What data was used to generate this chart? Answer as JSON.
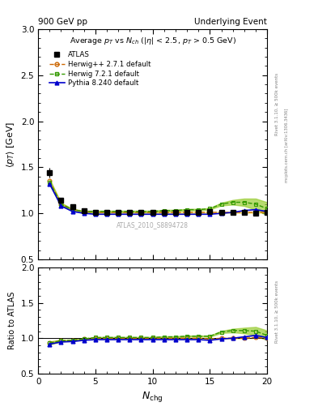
{
  "title_top_left": "900 GeV pp",
  "title_top_right": "Underlying Event",
  "main_title": "Average $p_T$ vs $N_{ch}$ ($|\\eta|$ < 2.5, $p_T$ > 0.5 GeV)",
  "ylabel_main": "$\\langle p_T \\rangle$ [GeV]",
  "ylabel_ratio": "Ratio to ATLAS",
  "xlabel": "$N_{\\rm chg}$",
  "watermark": "ATLAS_2010_S8894728",
  "right_label_top": "Rivet 3.1.10, ≥ 500k events",
  "right_label_bot": "mcplots.cern.ch [arXiv:1306.3436]",
  "xlim": [
    0,
    20
  ],
  "ylim_main": [
    0.5,
    3.0
  ],
  "ylim_ratio": [
    0.5,
    2.0
  ],
  "xticks": [
    0,
    5,
    10,
    15,
    20
  ],
  "yticks_main": [
    0.5,
    1.0,
    1.5,
    2.0,
    2.5,
    3.0
  ],
  "yticks_ratio": [
    0.5,
    1.0,
    1.5,
    2.0
  ],
  "atlas_x": [
    1,
    2,
    3,
    4,
    5,
    6,
    7,
    8,
    9,
    10,
    11,
    12,
    13,
    14,
    15,
    16,
    17,
    18,
    19,
    20
  ],
  "atlas_y": [
    1.44,
    1.14,
    1.07,
    1.03,
    1.01,
    1.01,
    1.01,
    1.01,
    1.01,
    1.01,
    1.01,
    1.01,
    1.01,
    1.01,
    1.02,
    1.01,
    1.01,
    1.01,
    1.0,
    1.01
  ],
  "atlas_yerr": [
    0.05,
    0.03,
    0.02,
    0.02,
    0.01,
    0.01,
    0.01,
    0.01,
    0.01,
    0.01,
    0.01,
    0.01,
    0.01,
    0.01,
    0.01,
    0.01,
    0.01,
    0.01,
    0.01,
    0.02
  ],
  "herwig_x": [
    1,
    2,
    3,
    4,
    5,
    6,
    7,
    8,
    9,
    10,
    11,
    12,
    13,
    14,
    15,
    16,
    17,
    18,
    19,
    20
  ],
  "herwig_y": [
    1.35,
    1.1,
    1.04,
    1.02,
    1.01,
    1.01,
    1.01,
    1.01,
    1.01,
    1.01,
    1.01,
    1.01,
    1.01,
    1.01,
    1.01,
    1.01,
    1.01,
    1.01,
    1.01,
    1.01
  ],
  "herwig_band_lo": [
    0.02,
    0.01,
    0.005,
    0.005,
    0.005,
    0.005,
    0.005,
    0.005,
    0.005,
    0.005,
    0.005,
    0.005,
    0.005,
    0.005,
    0.005,
    0.005,
    0.005,
    0.005,
    0.005,
    0.005
  ],
  "herwig_band_hi": [
    0.02,
    0.01,
    0.005,
    0.005,
    0.005,
    0.005,
    0.005,
    0.005,
    0.005,
    0.005,
    0.005,
    0.005,
    0.005,
    0.005,
    0.005,
    0.005,
    0.005,
    0.005,
    0.005,
    0.005
  ],
  "herwig7_x": [
    1,
    2,
    3,
    4,
    5,
    6,
    7,
    8,
    9,
    10,
    11,
    12,
    13,
    14,
    15,
    16,
    17,
    18,
    19,
    20
  ],
  "herwig7_y": [
    1.34,
    1.1,
    1.04,
    1.02,
    1.02,
    1.02,
    1.02,
    1.02,
    1.02,
    1.02,
    1.03,
    1.03,
    1.04,
    1.04,
    1.05,
    1.1,
    1.12,
    1.12,
    1.1,
    1.05
  ],
  "herwig7_band_lo": [
    0.03,
    0.015,
    0.008,
    0.008,
    0.008,
    0.008,
    0.008,
    0.008,
    0.008,
    0.008,
    0.008,
    0.008,
    0.008,
    0.008,
    0.008,
    0.015,
    0.025,
    0.04,
    0.06,
    0.07
  ],
  "herwig7_band_hi": [
    0.03,
    0.015,
    0.008,
    0.008,
    0.008,
    0.008,
    0.008,
    0.008,
    0.008,
    0.008,
    0.008,
    0.008,
    0.008,
    0.008,
    0.008,
    0.015,
    0.025,
    0.04,
    0.06,
    0.07
  ],
  "pythia_x": [
    1,
    2,
    3,
    4,
    5,
    6,
    7,
    8,
    9,
    10,
    11,
    12,
    13,
    14,
    15,
    16,
    17,
    18,
    19,
    20
  ],
  "pythia_y": [
    1.32,
    1.08,
    1.02,
    1.0,
    0.99,
    0.99,
    0.99,
    0.99,
    0.99,
    0.99,
    0.99,
    0.99,
    0.99,
    0.99,
    0.99,
    1.0,
    1.01,
    1.03,
    1.04,
    1.02
  ],
  "color_atlas": "#000000",
  "color_herwig": "#cc6600",
  "color_herwig7": "#339900",
  "color_pythia": "#0000cc",
  "color_herwig_band": "#ffee88",
  "color_herwig7_band": "#99cc33",
  "legend_labels": [
    "ATLAS",
    "Herwig++ 2.7.1 default",
    "Herwig 7.2.1 default",
    "Pythia 8.240 default"
  ]
}
